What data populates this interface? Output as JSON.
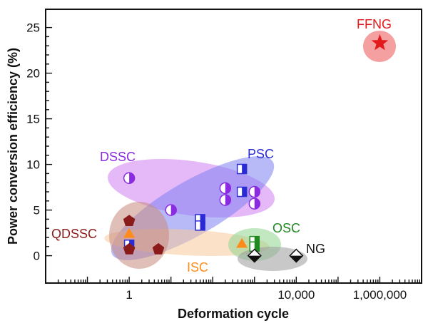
{
  "chart_data": {
    "type": "scatter",
    "title": "",
    "xlabel": "Deformation cycle",
    "ylabel": "Power conversion efficiency (%)",
    "x_scale": "log",
    "xlim": [
      0.01,
      10000000
    ],
    "ylim": [
      -3,
      27
    ],
    "x_ticks": [
      1,
      10000,
      1000000
    ],
    "x_tick_labels": [
      "1",
      "10,000",
      "1,000,000"
    ],
    "y_ticks": [
      0,
      5,
      10,
      15,
      20,
      25
    ],
    "y_tick_labels": [
      "0",
      "5",
      "10",
      "15",
      "20",
      "25"
    ],
    "grid": false,
    "groups": [
      {
        "name": "DSSC",
        "color": "#8a2be2",
        "fill": "#cf7df2",
        "marker": "circle-half",
        "points": [
          {
            "x": 1,
            "y": 8.5
          },
          {
            "x": 10,
            "y": 5.0
          },
          {
            "x": 200,
            "y": 7.4
          },
          {
            "x": 200,
            "y": 6.1
          },
          {
            "x": 1000,
            "y": 7.0
          },
          {
            "x": 1000,
            "y": 5.7
          }
        ]
      },
      {
        "name": "PSC",
        "color": "#2b2bd6",
        "fill": "#7d82f2",
        "marker": "square-half",
        "points": [
          {
            "x": 500,
            "y": 9.5
          },
          {
            "x": 500,
            "y": 7.0
          },
          {
            "x": 50,
            "y": 4.0
          },
          {
            "x": 50,
            "y": 3.3
          },
          {
            "x": 1,
            "y": 1.2
          }
        ]
      },
      {
        "name": "QDSSC",
        "color": "#8b1a1a",
        "fill": "#c98a80",
        "marker": "pentagon",
        "points": [
          {
            "x": 1,
            "y": 3.8
          },
          {
            "x": 1,
            "y": 0.7
          },
          {
            "x": 5,
            "y": 0.7
          }
        ]
      },
      {
        "name": "ISC",
        "color": "#ff8c1a",
        "fill": "#f5c99a",
        "marker": "triangle",
        "points": [
          {
            "x": 1,
            "y": 2.4
          },
          {
            "x": 500,
            "y": 1.3
          }
        ]
      },
      {
        "name": "OSC",
        "color": "#1f8a1f",
        "fill": "#8fd68f",
        "marker": "square-half",
        "points": [
          {
            "x": 1000,
            "y": 1.6
          },
          {
            "x": 1000,
            "y": 1.0
          }
        ]
      },
      {
        "name": "NG",
        "color": "#111111",
        "fill": "#9a9a9a",
        "marker": "diamond-half",
        "points": [
          {
            "x": 1000,
            "y": 0.0
          },
          {
            "x": 10000,
            "y": 0.0
          }
        ]
      },
      {
        "name": "FFNG",
        "color": "#e31a1c",
        "fill": "#f08080",
        "marker": "star",
        "points": [
          {
            "x": 1000000,
            "y": 23.3
          }
        ]
      }
    ]
  }
}
